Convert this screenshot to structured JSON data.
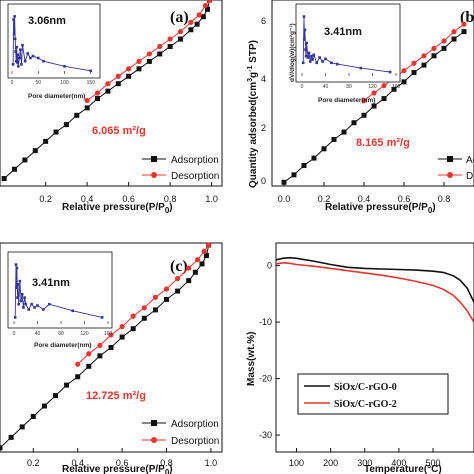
{
  "colors": {
    "adsorption": "#111111",
    "desorption": "#e8352f",
    "inset": "#33339a",
    "tga_a": "#111111",
    "tga_b": "#e8352f"
  },
  "chart_data": [
    {
      "type": "line",
      "panel_label": "(a)",
      "xlabel": "Relative pressure(P/P0)",
      "ylabel": "",
      "xlim": [
        -0.02,
        1.05
      ],
      "ylim": [
        0,
        1
      ],
      "x_ticks": [
        "0.2",
        "0.4",
        "0.6",
        "0.8",
        "1.0"
      ],
      "x_tick_values": [
        0.2,
        0.4,
        0.6,
        0.8,
        1.0
      ],
      "surface_area": "6.065 m²/g",
      "legend": [
        "Adsorption",
        "Desorption"
      ],
      "legend_placement": "bottom-right",
      "series": [
        {
          "name": "Adsorption",
          "x": [
            0.0,
            0.05,
            0.1,
            0.15,
            0.2,
            0.25,
            0.3,
            0.35,
            0.4,
            0.45,
            0.5,
            0.55,
            0.6,
            0.65,
            0.7,
            0.75,
            0.8,
            0.85,
            0.9,
            0.93,
            0.96,
            0.98,
            0.99
          ],
          "y": [
            0.04,
            0.09,
            0.14,
            0.19,
            0.24,
            0.29,
            0.33,
            0.38,
            0.42,
            0.47,
            0.51,
            0.55,
            0.59,
            0.63,
            0.67,
            0.71,
            0.75,
            0.79,
            0.84,
            0.87,
            0.91,
            0.95,
            1.0
          ]
        },
        {
          "name": "Desorption",
          "x": [
            0.99,
            0.97,
            0.94,
            0.9,
            0.85,
            0.8,
            0.75,
            0.7,
            0.65,
            0.6,
            0.55,
            0.5,
            0.45,
            0.4
          ],
          "y": [
            1.0,
            0.97,
            0.92,
            0.88,
            0.83,
            0.79,
            0.75,
            0.71,
            0.67,
            0.63,
            0.59,
            0.55,
            0.5,
            0.46
          ]
        }
      ],
      "inset": {
        "xlabel": "Pore diameter(nm)",
        "annotation": "3.06nm",
        "xlim": [
          0,
          160
        ],
        "ylim": [
          0,
          1
        ],
        "x_ticks": [
          "0",
          "50",
          "100",
          "150"
        ],
        "x_tick_values": [
          0,
          50,
          100,
          150
        ],
        "x": [
          2,
          3.06,
          4,
          5,
          6,
          7,
          8,
          9,
          10,
          11,
          12,
          14,
          16,
          18,
          20,
          25,
          30,
          35,
          40,
          50,
          60,
          100,
          150
        ],
        "y": [
          0.15,
          0.85,
          0.62,
          0.9,
          0.55,
          0.35,
          0.2,
          0.42,
          0.18,
          0.3,
          0.12,
          0.25,
          0.38,
          0.15,
          0.45,
          0.2,
          0.32,
          0.25,
          0.28,
          0.25,
          0.2,
          0.12,
          0.05
        ]
      }
    },
    {
      "type": "line",
      "panel_label": "(b)",
      "xlabel": "Relative pressure(P/P0)",
      "ylabel": "Quantity adsorbed(cm³g⁻¹ STP)",
      "xlim": [
        -0.06,
        0.95
      ],
      "ylim": [
        0,
        1
      ],
      "x_ticks": [
        "0.0",
        "0.2",
        "0.4",
        "0.6",
        "0.8"
      ],
      "x_tick_values": [
        0.0,
        0.2,
        0.4,
        0.6,
        0.8
      ],
      "surface_area": "8.165 m²/g",
      "legend": [
        "Adsorption",
        "Desorption"
      ],
      "legend_placement": "bottom-right",
      "series": [
        {
          "name": "Adsorption",
          "x": [
            0.0,
            0.05,
            0.1,
            0.15,
            0.2,
            0.25,
            0.3,
            0.35,
            0.4,
            0.45,
            0.5,
            0.55,
            0.6,
            0.65,
            0.7,
            0.75,
            0.8,
            0.85,
            0.9
          ],
          "y": [
            0.02,
            0.06,
            0.11,
            0.15,
            0.2,
            0.25,
            0.29,
            0.34,
            0.38,
            0.43,
            0.47,
            0.52,
            0.56,
            0.61,
            0.65,
            0.7,
            0.74,
            0.79,
            0.83
          ]
        },
        {
          "name": "Desorption",
          "x": [
            0.9,
            0.85,
            0.8,
            0.75,
            0.7,
            0.65,
            0.6,
            0.55,
            0.5,
            0.45,
            0.4
          ],
          "y": [
            0.87,
            0.83,
            0.78,
            0.74,
            0.7,
            0.66,
            0.62,
            0.58,
            0.54,
            0.5,
            0.46
          ]
        }
      ],
      "inset": {
        "xlabel": "Pore diameter(nm)",
        "ylabel": "dV/dlog(w)(cm³g⁻¹)",
        "annotation": "3.41nm",
        "xlim": [
          0,
          160
        ],
        "ylim": [
          0,
          1
        ],
        "x_ticks": [
          "0",
          "40",
          "80",
          "120",
          "160"
        ],
        "x_tick_values": [
          0,
          40,
          80,
          120,
          160
        ],
        "x": [
          2,
          3.41,
          4,
          5,
          6,
          7,
          8,
          10,
          12,
          14,
          16,
          18,
          20,
          25,
          30,
          35,
          40,
          50,
          60,
          100,
          150
        ],
        "y": [
          0.2,
          0.9,
          0.55,
          0.7,
          0.4,
          0.3,
          0.5,
          0.28,
          0.35,
          0.22,
          0.3,
          0.25,
          0.32,
          0.2,
          0.28,
          0.22,
          0.26,
          0.2,
          0.18,
          0.12,
          0.06
        ]
      }
    },
    {
      "type": "line",
      "panel_label": "(c)",
      "xlabel": "Relative pressure(P/P0)",
      "ylabel": "",
      "xlim": [
        0.05,
        1.05
      ],
      "ylim": [
        0,
        1
      ],
      "x_ticks": [
        "0.2",
        "0.4",
        "0.6",
        "0.8",
        "1.0"
      ],
      "x_tick_values": [
        0.2,
        0.4,
        0.6,
        0.8,
        1.0
      ],
      "surface_area": "12.725 m²/g",
      "legend": [
        "Adsorption",
        "Desorption"
      ],
      "legend_placement": "bottom-right",
      "series": [
        {
          "name": "Adsorption",
          "x": [
            0.05,
            0.1,
            0.15,
            0.2,
            0.25,
            0.3,
            0.35,
            0.4,
            0.45,
            0.5,
            0.55,
            0.6,
            0.65,
            0.7,
            0.75,
            0.8,
            0.85,
            0.9,
            0.93,
            0.96,
            0.98,
            0.99
          ],
          "y": [
            0.02,
            0.07,
            0.12,
            0.17,
            0.22,
            0.27,
            0.32,
            0.36,
            0.41,
            0.46,
            0.5,
            0.55,
            0.59,
            0.64,
            0.68,
            0.73,
            0.77,
            0.82,
            0.86,
            0.9,
            0.94,
            0.99
          ]
        },
        {
          "name": "Desorption",
          "x": [
            0.99,
            0.97,
            0.94,
            0.9,
            0.85,
            0.8,
            0.75,
            0.7,
            0.65,
            0.6,
            0.55,
            0.5,
            0.45,
            0.4
          ],
          "y": [
            0.99,
            0.96,
            0.92,
            0.88,
            0.83,
            0.78,
            0.74,
            0.69,
            0.65,
            0.6,
            0.56,
            0.51,
            0.47,
            0.42
          ]
        }
      ],
      "inset": {
        "xlabel": "Pore diameter(nm)",
        "annotation": "3.41nm",
        "xlim": [
          0,
          160
        ],
        "ylim": [
          0,
          1
        ],
        "x_ticks": [
          "0",
          "40",
          "80",
          "120",
          "160"
        ],
        "x_tick_values": [
          0,
          40,
          80,
          120,
          160
        ],
        "x": [
          2,
          3.41,
          4,
          5,
          6,
          7,
          8,
          10,
          12,
          14,
          16,
          18,
          20,
          25,
          30,
          35,
          40,
          50,
          60,
          100,
          150
        ],
        "y": [
          0.1,
          0.9,
          0.55,
          0.85,
          0.4,
          0.6,
          0.3,
          0.65,
          0.35,
          0.45,
          0.25,
          0.4,
          0.3,
          0.22,
          0.3,
          0.25,
          0.28,
          0.22,
          0.3,
          0.2,
          0.1
        ]
      }
    },
    {
      "type": "line",
      "panel_label": "",
      "xlabel": "Temperature(°C)",
      "ylabel": "Mass(wt.%)",
      "xlim": [
        40,
        620
      ],
      "ylim": [
        -33,
        4
      ],
      "x_ticks": [
        "100",
        "200",
        "300",
        "400",
        "500"
      ],
      "x_tick_values": [
        100,
        200,
        300,
        400,
        500
      ],
      "y_ticks": [
        "0",
        "-10",
        "-20",
        "-30"
      ],
      "y_tick_values": [
        0,
        -10,
        -20,
        -30
      ],
      "legend": [
        "SiOx/C-rGO-0",
        "SiOx/C-rGO-2"
      ],
      "legend_placement": "bottom-right",
      "series": [
        {
          "name": "SiOx/C-rGO-0",
          "x": [
            40,
            60,
            80,
            100,
            150,
            200,
            250,
            300,
            350,
            400,
            450,
            500,
            530,
            560,
            580,
            600,
            620
          ],
          "y": [
            1.0,
            1.3,
            1.4,
            1.3,
            0.8,
            0.2,
            -0.3,
            -0.5,
            -0.6,
            -0.7,
            -0.8,
            -1.0,
            -1.2,
            -1.8,
            -2.6,
            -4.0,
            -6.5
          ]
        },
        {
          "name": "SiOx/C-rGO-2",
          "x": [
            40,
            60,
            80,
            100,
            150,
            200,
            250,
            300,
            350,
            400,
            450,
            500,
            530,
            560,
            580,
            600,
            620
          ],
          "y": [
            0.3,
            0.5,
            0.4,
            0.2,
            -0.1,
            -0.5,
            -0.9,
            -1.3,
            -1.7,
            -2.2,
            -2.8,
            -3.5,
            -4.2,
            -5.3,
            -6.5,
            -8.0,
            -10.0
          ]
        }
      ]
    }
  ]
}
